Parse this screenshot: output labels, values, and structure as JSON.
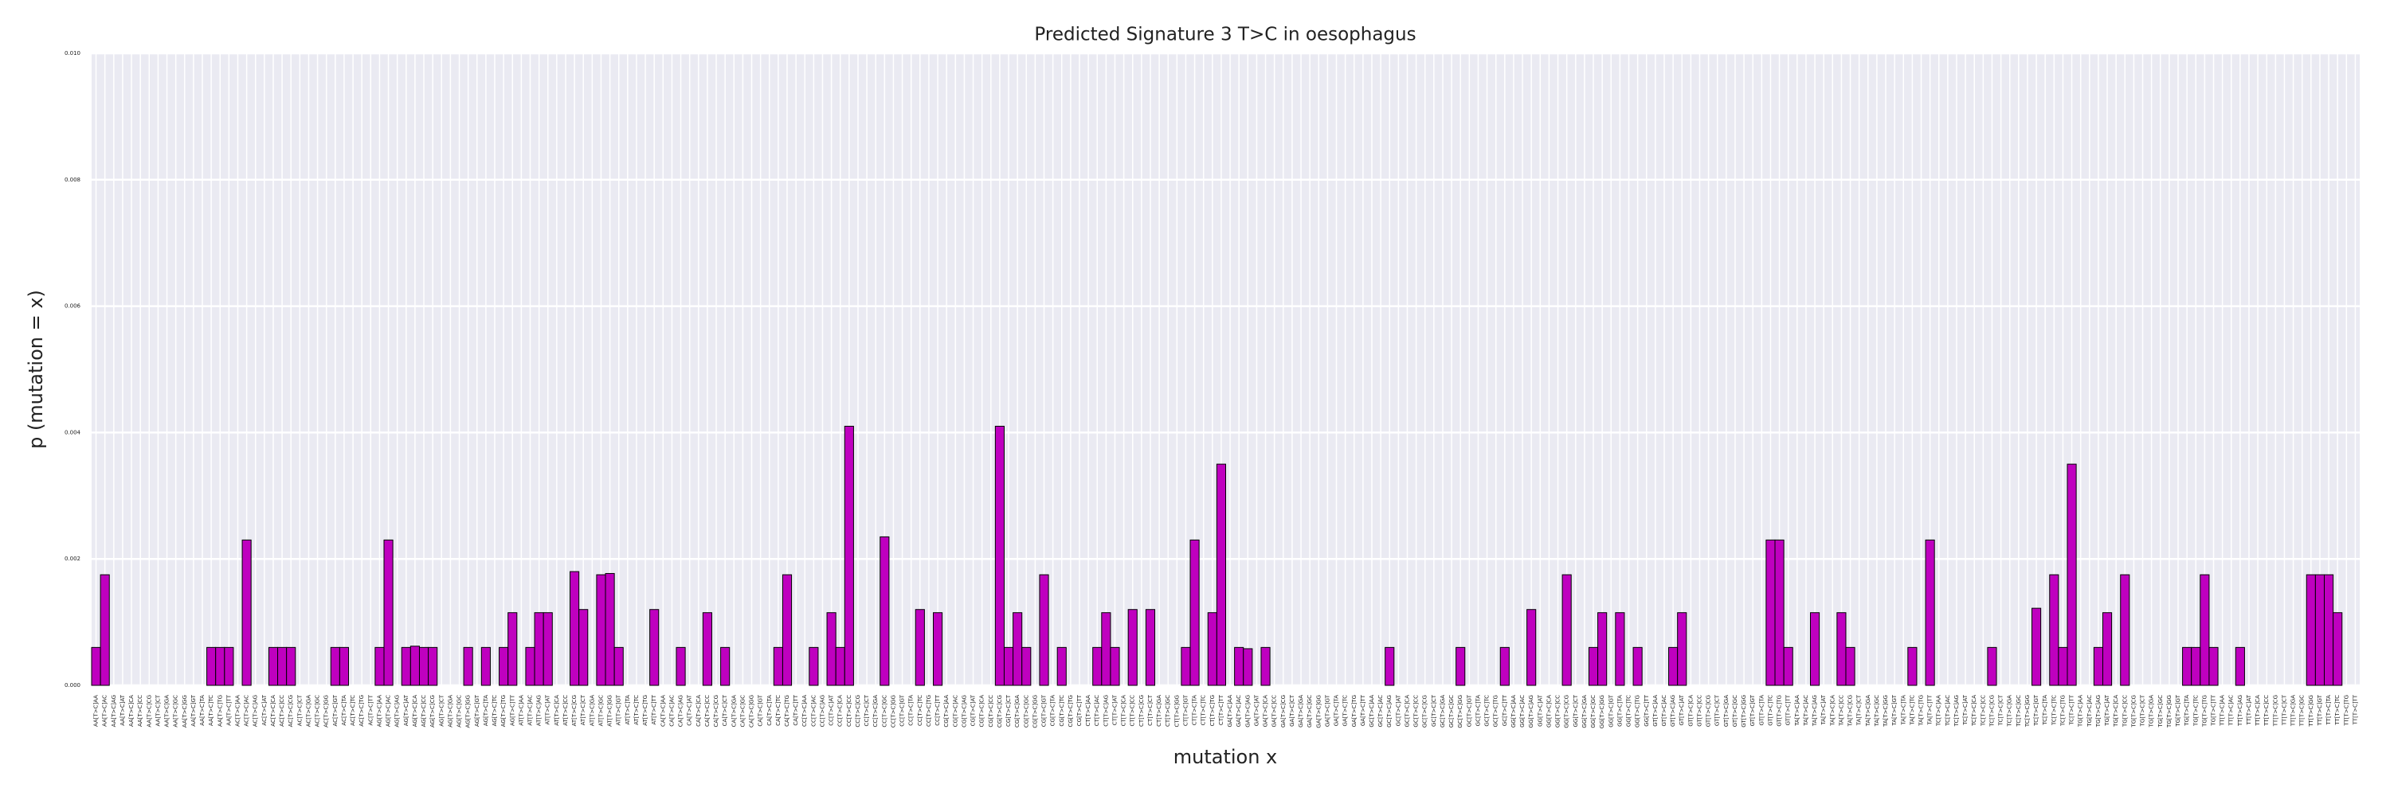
{
  "chart_data": {
    "type": "bar",
    "title": "Predicted Signature 3 T>C in oesophagus",
    "x_label": "mutation x",
    "y_label": "p (mutation = x)",
    "color": "#bf00bf",
    "edge_color": "#000000",
    "grid": true,
    "ylim": [
      0,
      0.01
    ],
    "yticks": [
      {
        "value": 0,
        "label": "0.000"
      },
      0.002,
      0.004,
      0.006,
      0.008,
      {
        "value": 0.01,
        "label": "0.010"
      }
    ],
    "categories": [
      "AA[T>C]AA",
      "AA[T>C]AC",
      "AA[T>C]AG",
      "AA[T>C]AT",
      "AA[T>C]CA",
      "AA[T>C]CC",
      "AA[T>C]CG",
      "AA[T>C]CT",
      "AA[T>C]GA",
      "AA[T>C]GC",
      "AA[T>C]GG",
      "AA[T>C]GT",
      "AA[T>C]TA",
      "AA[T>C]TC",
      "AA[T>C]TG",
      "AA[T>C]TT",
      "AC[T>C]AA",
      "AC[T>C]AC",
      "AC[T>C]AG",
      "AC[T>C]AT",
      "AC[T>C]CA",
      "AC[T>C]CC",
      "AC[T>C]CG",
      "AC[T>C]CT",
      "AC[T>C]GA",
      "AC[T>C]GC",
      "AC[T>C]GG",
      "AC[T>C]GT",
      "AC[T>C]TA",
      "AC[T>C]TC",
      "AC[T>C]TG",
      "AC[T>C]TT",
      "AG[T>C]AA",
      "AG[T>C]AC",
      "AG[T>C]AG",
      "AG[T>C]AT",
      "AG[T>C]CA",
      "AG[T>C]CC",
      "AG[T>C]CG",
      "AG[T>C]CT",
      "AG[T>C]GA",
      "AG[T>C]GC",
      "AG[T>C]GG",
      "AG[T>C]GT",
      "AG[T>C]TA",
      "AG[T>C]TC",
      "AG[T>C]TG",
      "AG[T>C]TT",
      "AT[T>C]AA",
      "AT[T>C]AC",
      "AT[T>C]AG",
      "AT[T>C]AT",
      "AT[T>C]CA",
      "AT[T>C]CC",
      "AT[T>C]CG",
      "AT[T>C]CT",
      "AT[T>C]GA",
      "AT[T>C]GC",
      "AT[T>C]GG",
      "AT[T>C]GT",
      "AT[T>C]TA",
      "AT[T>C]TC",
      "AT[T>C]TG",
      "AT[T>C]TT",
      "CA[T>C]AA",
      "CA[T>C]AC",
      "CA[T>C]AG",
      "CA[T>C]AT",
      "CA[T>C]CA",
      "CA[T>C]CC",
      "CA[T>C]CG",
      "CA[T>C]CT",
      "CA[T>C]GA",
      "CA[T>C]GC",
      "CA[T>C]GG",
      "CA[T>C]GT",
      "CA[T>C]TA",
      "CA[T>C]TC",
      "CA[T>C]TG",
      "CA[T>C]TT",
      "CC[T>C]AA",
      "CC[T>C]AC",
      "CC[T>C]AG",
      "CC[T>C]AT",
      "CC[T>C]CA",
      "CC[T>C]CC",
      "CC[T>C]CG",
      "CC[T>C]CT",
      "CC[T>C]GA",
      "CC[T>C]GC",
      "CC[T>C]GG",
      "CC[T>C]GT",
      "CC[T>C]TA",
      "CC[T>C]TC",
      "CC[T>C]TG",
      "CC[T>C]TT",
      "CG[T>C]AA",
      "CG[T>C]AC",
      "CG[T>C]AG",
      "CG[T>C]AT",
      "CG[T>C]CA",
      "CG[T>C]CC",
      "CG[T>C]CG",
      "CG[T>C]CT",
      "CG[T>C]GA",
      "CG[T>C]GC",
      "CG[T>C]GG",
      "CG[T>C]GT",
      "CG[T>C]TA",
      "CG[T>C]TC",
      "CG[T>C]TG",
      "CG[T>C]TT",
      "CT[T>C]AA",
      "CT[T>C]AC",
      "CT[T>C]AG",
      "CT[T>C]AT",
      "CT[T>C]CA",
      "CT[T>C]CC",
      "CT[T>C]CG",
      "CT[T>C]CT",
      "CT[T>C]GA",
      "CT[T>C]GC",
      "CT[T>C]GG",
      "CT[T>C]GT",
      "CT[T>C]TA",
      "CT[T>C]TC",
      "CT[T>C]TG",
      "CT[T>C]TT",
      "GA[T>C]AA",
      "GA[T>C]AC",
      "GA[T>C]AG",
      "GA[T>C]AT",
      "GA[T>C]CA",
      "GA[T>C]CC",
      "GA[T>C]CG",
      "GA[T>C]CT",
      "GA[T>C]GA",
      "GA[T>C]GC",
      "GA[T>C]GG",
      "GA[T>C]GT",
      "GA[T>C]TA",
      "GA[T>C]TC",
      "GA[T>C]TG",
      "GA[T>C]TT",
      "GC[T>C]AA",
      "GC[T>C]AC",
      "GC[T>C]AG",
      "GC[T>C]AT",
      "GC[T>C]CA",
      "GC[T>C]CC",
      "GC[T>C]CG",
      "GC[T>C]CT",
      "GC[T>C]GA",
      "GC[T>C]GC",
      "GC[T>C]GG",
      "GC[T>C]GT",
      "GC[T>C]TA",
      "GC[T>C]TC",
      "GC[T>C]TG",
      "GC[T>C]TT",
      "GG[T>C]AA",
      "GG[T>C]AC",
      "GG[T>C]AG",
      "GG[T>C]AT",
      "GG[T>C]CA",
      "GG[T>C]CC",
      "GG[T>C]CG",
      "GG[T>C]CT",
      "GG[T>C]GA",
      "GG[T>C]GC",
      "GG[T>C]GG",
      "GG[T>C]GT",
      "GG[T>C]TA",
      "GG[T>C]TC",
      "GG[T>C]TG",
      "GG[T>C]TT",
      "GT[T>C]AA",
      "GT[T>C]AC",
      "GT[T>C]AG",
      "GT[T>C]AT",
      "GT[T>C]CA",
      "GT[T>C]CC",
      "GT[T>C]CG",
      "GT[T>C]CT",
      "GT[T>C]GA",
      "GT[T>C]GC",
      "GT[T>C]GG",
      "GT[T>C]GT",
      "GT[T>C]TA",
      "GT[T>C]TC",
      "GT[T>C]TG",
      "GT[T>C]TT",
      "TA[T>C]AA",
      "TA[T>C]AC",
      "TA[T>C]AG",
      "TA[T>C]AT",
      "TA[T>C]CA",
      "TA[T>C]CC",
      "TA[T>C]CG",
      "TA[T>C]CT",
      "TA[T>C]GA",
      "TA[T>C]GC",
      "TA[T>C]GG",
      "TA[T>C]GT",
      "TA[T>C]TA",
      "TA[T>C]TC",
      "TA[T>C]TG",
      "TA[T>C]TT",
      "TC[T>C]AA",
      "TC[T>C]AC",
      "TC[T>C]AG",
      "TC[T>C]AT",
      "TC[T>C]CA",
      "TC[T>C]CC",
      "TC[T>C]CG",
      "TC[T>C]CT",
      "TC[T>C]GA",
      "TC[T>C]GC",
      "TC[T>C]GG",
      "TC[T>C]GT",
      "TC[T>C]TA",
      "TC[T>C]TC",
      "TC[T>C]TG",
      "TC[T>C]TT",
      "TG[T>C]AA",
      "TG[T>C]AC",
      "TG[T>C]AG",
      "TG[T>C]AT",
      "TG[T>C]CA",
      "TG[T>C]CC",
      "TG[T>C]CG",
      "TG[T>C]CT",
      "TG[T>C]GA",
      "TG[T>C]GC",
      "TG[T>C]GG",
      "TG[T>C]GT",
      "TG[T>C]TA",
      "TG[T>C]TC",
      "TG[T>C]TG",
      "TG[T>C]TT",
      "TT[T>C]AA",
      "TT[T>C]AC",
      "TT[T>C]AG",
      "TT[T>C]AT",
      "TT[T>C]CA",
      "TT[T>C]CC",
      "TT[T>C]CG",
      "TT[T>C]CT",
      "TT[T>C]GA",
      "TT[T>C]GC",
      "TT[T>C]GG",
      "TT[T>C]GT",
      "TT[T>C]TA",
      "TT[T>C]TC",
      "TT[T>C]TG",
      "TT[T>C]TT"
    ],
    "values": [
      0.0006,
      0.00175,
      0,
      0,
      0,
      0,
      0,
      0,
      0,
      0,
      0,
      0,
      0,
      0.0006,
      0.0006,
      0.0006,
      0,
      0.0023,
      0,
      0,
      0.0006,
      0.0006,
      0.0006,
      0,
      0,
      0,
      0,
      0.0006,
      0.0006,
      0,
      0,
      0,
      0.0006,
      0.0023,
      0,
      0.0006,
      0.00062,
      0.0006,
      0.0006,
      0,
      0,
      0,
      0.0006,
      0,
      0.0006,
      0,
      0.0006,
      0.00115,
      0,
      0.0006,
      0.00115,
      0.00115,
      0,
      0,
      0.0018,
      0.0012,
      0,
      0.00175,
      0.00177,
      0.0006,
      0,
      0,
      0,
      0.0012,
      0,
      0,
      0.0006,
      0,
      0,
      0.00115,
      0,
      0.0006,
      0,
      0,
      0,
      0,
      0,
      0.0006,
      0.00175,
      0,
      0,
      0.0006,
      0,
      0.00115,
      0.0006,
      0.0041,
      0,
      0,
      0,
      0.00235,
      0,
      0,
      0,
      0.0012,
      0,
      0.00115,
      0,
      0,
      0,
      0,
      0,
      0,
      0.0041,
      0.0006,
      0.00115,
      0.0006,
      0,
      0.00175,
      0,
      0.0006,
      0,
      0,
      0,
      0.0006,
      0.00115,
      0.0006,
      0,
      0.0012,
      0,
      0.0012,
      0,
      0,
      0,
      0.0006,
      0.0023,
      0,
      0.00115,
      0.0035,
      0,
      0.0006,
      0.00058,
      0,
      0.0006,
      0,
      0,
      0,
      0,
      0,
      0,
      0,
      0,
      0,
      0,
      0,
      0,
      0,
      0.0006,
      0,
      0,
      0,
      0,
      0,
      0,
      0,
      0.0006,
      0,
      0,
      0,
      0,
      0.0006,
      0,
      0,
      0.0012,
      0,
      0,
      0,
      0.00175,
      0,
      0,
      0.0006,
      0.00115,
      0,
      0.00115,
      0,
      0.0006,
      0,
      0,
      0,
      0.0006,
      0.00115,
      0,
      0,
      0,
      0,
      0,
      0,
      0,
      0,
      0,
      0.0023,
      0.0023,
      0.0006,
      0,
      0,
      0.00115,
      0,
      0,
      0.00115,
      0.0006,
      0,
      0,
      0,
      0,
      0,
      0,
      0.0006,
      0,
      0.0023,
      0,
      0,
      0,
      0,
      0,
      0,
      0.0006,
      0,
      0,
      0,
      0,
      0.00122,
      0,
      0.00175,
      0.0006,
      0.0035,
      0,
      0,
      0.0006,
      0.00115,
      0,
      0.00175,
      0,
      0,
      0,
      0,
      0,
      0,
      0.0006,
      0.0006,
      0.00175,
      0.0006,
      0,
      0,
      0.0006,
      0,
      0,
      0,
      0,
      0,
      0,
      0,
      0.00175,
      0.00175,
      0.00175,
      0.00115,
      0,
      0
    ]
  }
}
